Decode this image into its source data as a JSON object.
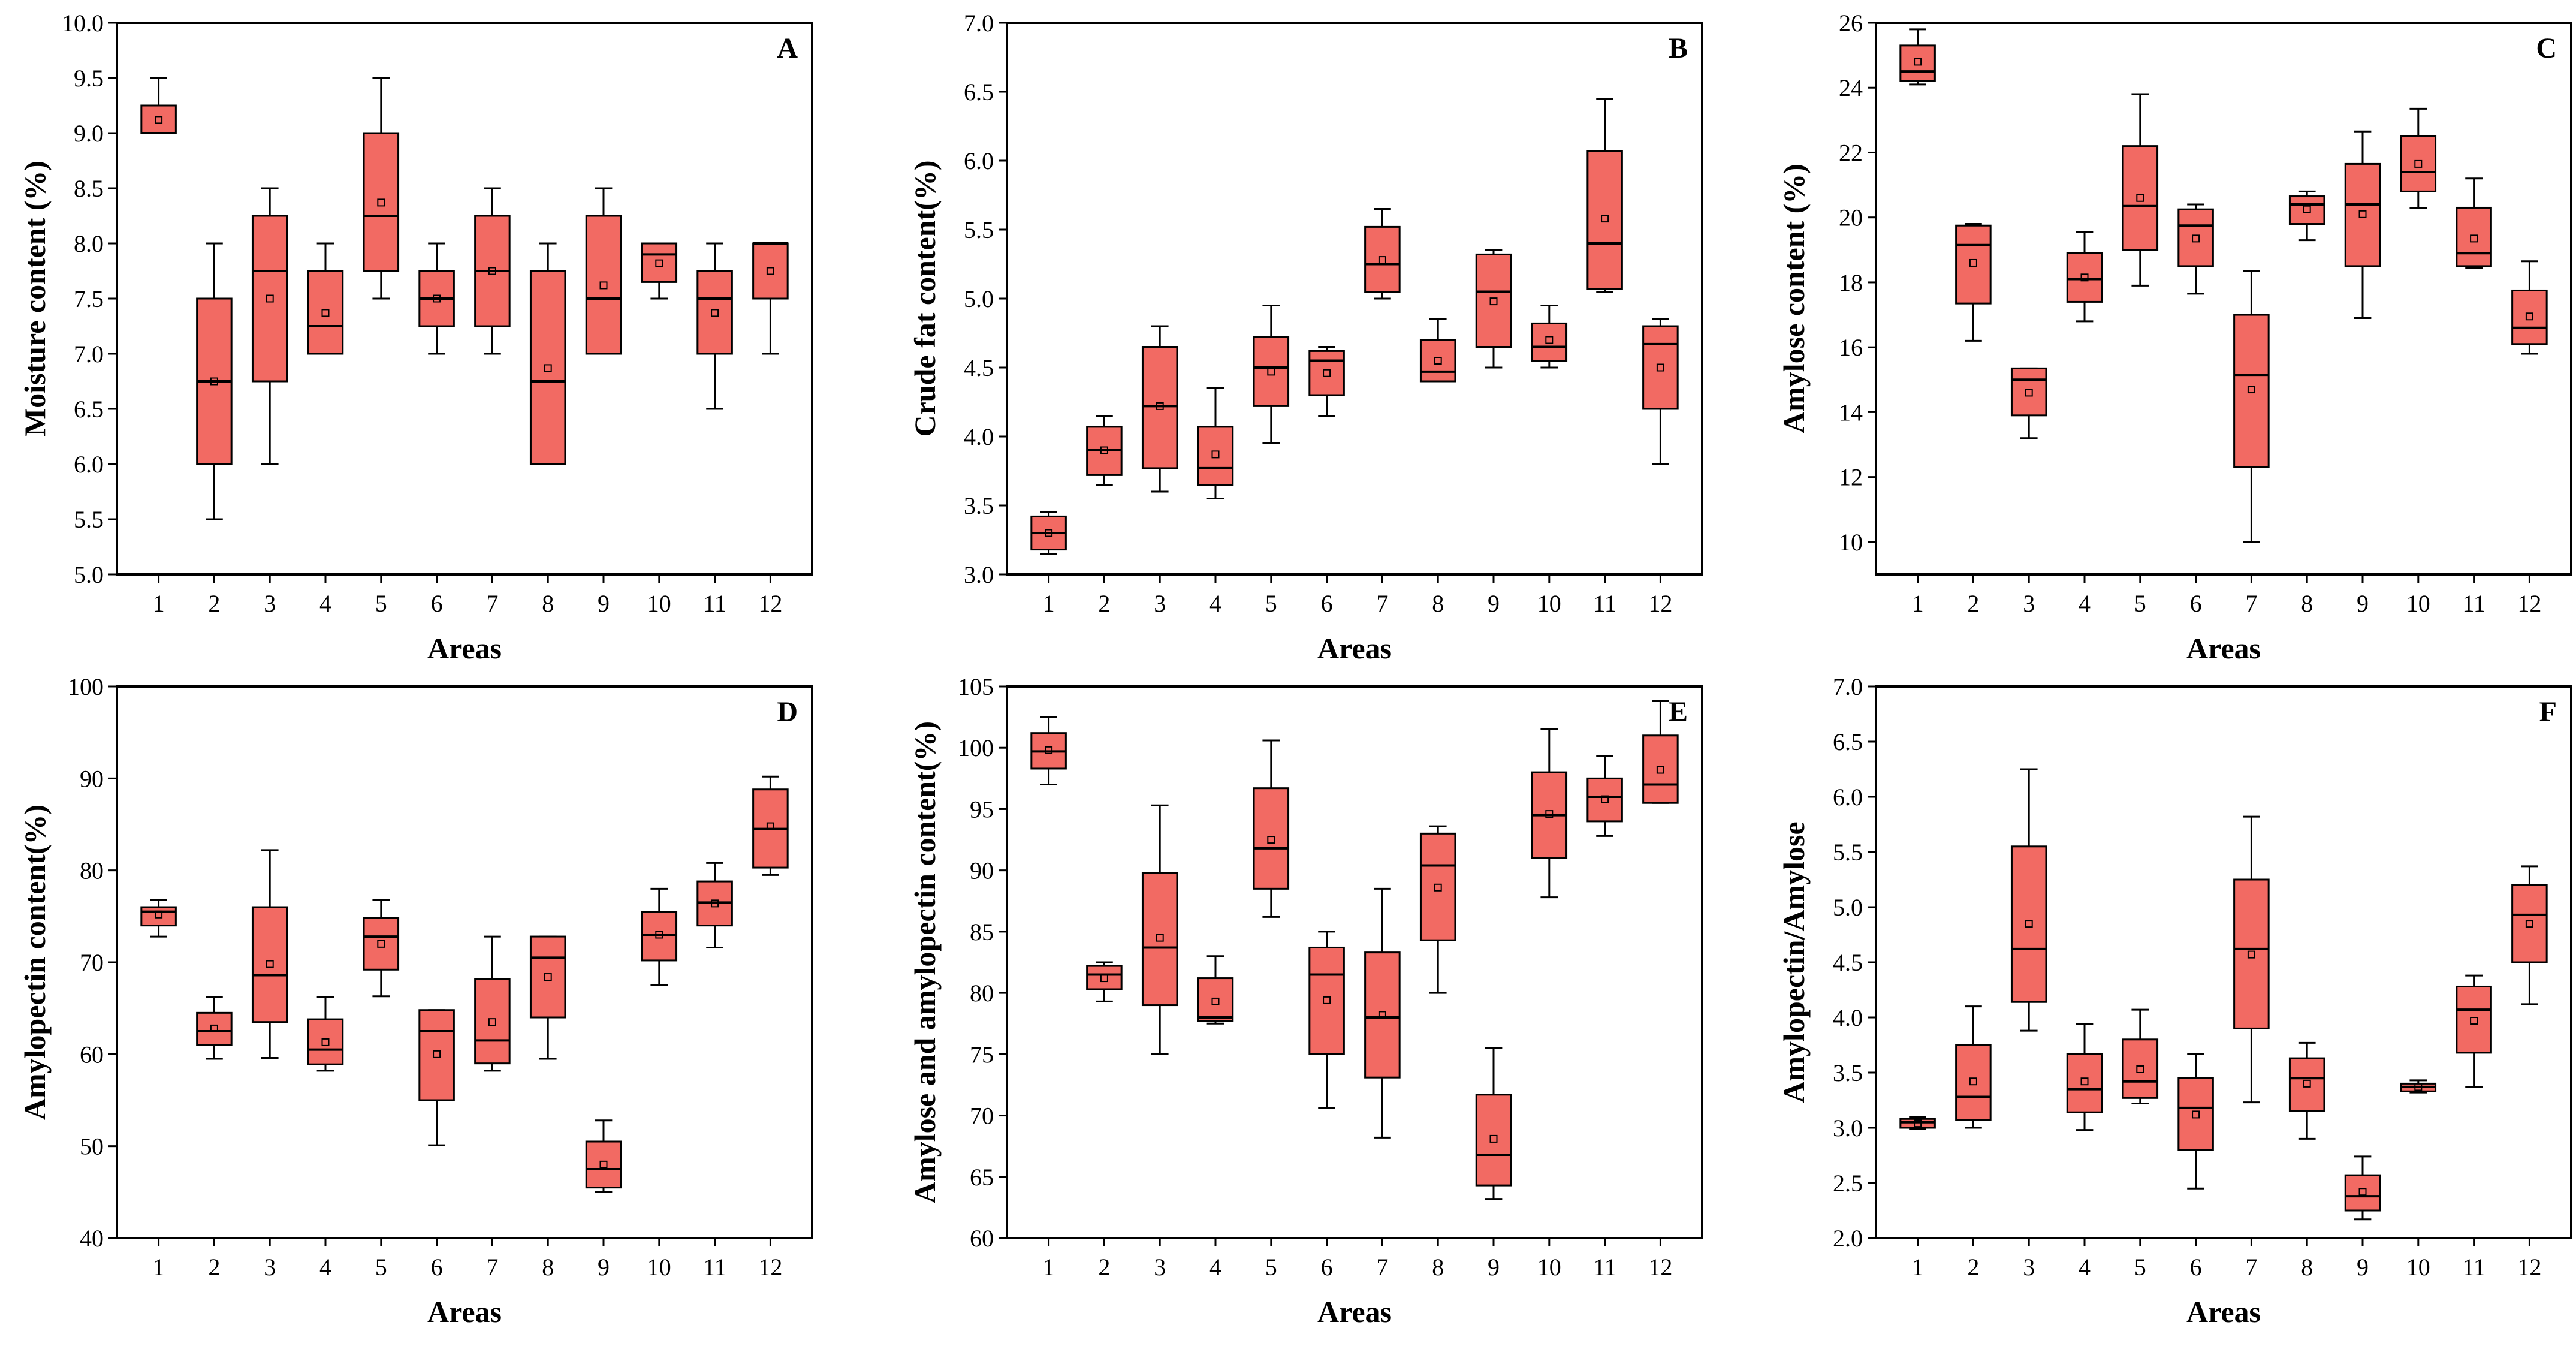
{
  "figure": {
    "box_color": "#f26a63",
    "edge_color": "#000000"
  },
  "chart_data": [
    {
      "id": "A",
      "type": "box",
      "letter": "A",
      "xlabel": "Areas",
      "ylabel": "Moisture content (%)",
      "ylim": [
        5.0,
        10.0
      ],
      "yticks": [
        "5.0",
        "5.5",
        "6.0",
        "6.5",
        "7.0",
        "7.5",
        "8.0",
        "8.5",
        "9.0",
        "9.5",
        "10.0"
      ],
      "categories": [
        "1",
        "2",
        "3",
        "4",
        "5",
        "6",
        "7",
        "8",
        "9",
        "10",
        "11",
        "12"
      ],
      "boxes": [
        {
          "min": 9.0,
          "q1": 9.0,
          "median": 9.0,
          "q3": 9.25,
          "max": 9.5,
          "mean": 9.12
        },
        {
          "min": 5.5,
          "q1": 6.0,
          "median": 6.75,
          "q3": 7.5,
          "max": 8.0,
          "mean": 6.75
        },
        {
          "min": 6.0,
          "q1": 6.75,
          "median": 7.75,
          "q3": 8.25,
          "max": 8.5,
          "mean": 7.5
        },
        {
          "min": 7.0,
          "q1": 7.0,
          "median": 7.25,
          "q3": 7.75,
          "max": 8.0,
          "mean": 7.37
        },
        {
          "min": 7.5,
          "q1": 7.75,
          "median": 8.25,
          "q3": 9.0,
          "max": 9.5,
          "mean": 8.37
        },
        {
          "min": 7.0,
          "q1": 7.25,
          "median": 7.5,
          "q3": 7.75,
          "max": 8.0,
          "mean": 7.5
        },
        {
          "min": 7.0,
          "q1": 7.25,
          "median": 7.75,
          "q3": 8.25,
          "max": 8.5,
          "mean": 7.75
        },
        {
          "min": 6.0,
          "q1": 6.0,
          "median": 6.75,
          "q3": 7.75,
          "max": 8.0,
          "mean": 6.87
        },
        {
          "min": 7.0,
          "q1": 7.0,
          "median": 7.5,
          "q3": 8.25,
          "max": 8.5,
          "mean": 7.62
        },
        {
          "min": 7.5,
          "q1": 7.65,
          "median": 7.9,
          "q3": 8.0,
          "max": 8.0,
          "mean": 7.82
        },
        {
          "min": 6.5,
          "q1": 7.0,
          "median": 7.5,
          "q3": 7.75,
          "max": 8.0,
          "mean": 7.37
        },
        {
          "min": 7.0,
          "q1": 7.5,
          "median": 8.0,
          "q3": 8.0,
          "max": 8.0,
          "mean": 7.75
        }
      ]
    },
    {
      "id": "B",
      "type": "box",
      "letter": "B",
      "xlabel": "Areas",
      "ylabel": "Crude fat content(%)",
      "ylim": [
        3.0,
        7.0
      ],
      "yticks": [
        "3.0",
        "3.5",
        "4.0",
        "4.5",
        "5.0",
        "5.5",
        "6.0",
        "6.5",
        "7.0"
      ],
      "categories": [
        "1",
        "2",
        "3",
        "4",
        "5",
        "6",
        "7",
        "8",
        "9",
        "10",
        "11",
        "12"
      ],
      "boxes": [
        {
          "min": 3.15,
          "q1": 3.18,
          "median": 3.3,
          "q3": 3.42,
          "max": 3.45,
          "mean": 3.3
        },
        {
          "min": 3.65,
          "q1": 3.72,
          "median": 3.9,
          "q3": 4.07,
          "max": 4.15,
          "mean": 3.9
        },
        {
          "min": 3.6,
          "q1": 3.77,
          "median": 4.22,
          "q3": 4.65,
          "max": 4.8,
          "mean": 4.22
        },
        {
          "min": 3.55,
          "q1": 3.65,
          "median": 3.77,
          "q3": 4.07,
          "max": 4.35,
          "mean": 3.87
        },
        {
          "min": 3.95,
          "q1": 4.22,
          "median": 4.5,
          "q3": 4.72,
          "max": 4.95,
          "mean": 4.47
        },
        {
          "min": 4.15,
          "q1": 4.3,
          "median": 4.55,
          "q3": 4.62,
          "max": 4.65,
          "mean": 4.46
        },
        {
          "min": 5.0,
          "q1": 5.05,
          "median": 5.25,
          "q3": 5.52,
          "max": 5.65,
          "mean": 5.28
        },
        {
          "min": 4.4,
          "q1": 4.4,
          "median": 4.47,
          "q3": 4.7,
          "max": 4.85,
          "mean": 4.55
        },
        {
          "min": 4.5,
          "q1": 4.65,
          "median": 5.05,
          "q3": 5.32,
          "max": 5.35,
          "mean": 4.98
        },
        {
          "min": 4.5,
          "q1": 4.55,
          "median": 4.65,
          "q3": 4.82,
          "max": 4.95,
          "mean": 4.7
        },
        {
          "min": 5.05,
          "q1": 5.07,
          "median": 5.4,
          "q3": 6.07,
          "max": 6.45,
          "mean": 5.58
        },
        {
          "min": 3.8,
          "q1": 4.2,
          "median": 4.67,
          "q3": 4.8,
          "max": 4.85,
          "mean": 4.5
        }
      ]
    },
    {
      "id": "C",
      "type": "box",
      "letter": "C",
      "xlabel": "Areas",
      "ylabel": "Amylose content (%)",
      "ylim": [
        9,
        26
      ],
      "yticks": [
        "10",
        "12",
        "14",
        "16",
        "18",
        "20",
        "22",
        "24",
        "26"
      ],
      "categories": [
        "1",
        "2",
        "3",
        "4",
        "5",
        "6",
        "7",
        "8",
        "9",
        "10",
        "11",
        "12"
      ],
      "boxes": [
        {
          "min": 24.1,
          "q1": 24.2,
          "median": 24.5,
          "q3": 25.3,
          "max": 25.8,
          "mean": 24.8
        },
        {
          "min": 16.2,
          "q1": 17.35,
          "median": 19.15,
          "q3": 19.75,
          "max": 19.8,
          "mean": 18.6
        },
        {
          "min": 13.2,
          "q1": 13.9,
          "median": 15.0,
          "q3": 15.35,
          "max": 15.35,
          "mean": 14.6
        },
        {
          "min": 16.8,
          "q1": 17.4,
          "median": 18.1,
          "q3": 18.9,
          "max": 19.55,
          "mean": 18.15
        },
        {
          "min": 17.9,
          "q1": 19.0,
          "median": 20.35,
          "q3": 22.2,
          "max": 23.8,
          "mean": 20.6
        },
        {
          "min": 17.65,
          "q1": 18.5,
          "median": 19.75,
          "q3": 20.25,
          "max": 20.4,
          "mean": 19.35
        },
        {
          "min": 10.0,
          "q1": 12.3,
          "median": 15.15,
          "q3": 17.0,
          "max": 18.35,
          "mean": 14.7
        },
        {
          "min": 19.3,
          "q1": 19.8,
          "median": 20.4,
          "q3": 20.65,
          "max": 20.8,
          "mean": 20.25
        },
        {
          "min": 16.9,
          "q1": 18.5,
          "median": 20.4,
          "q3": 21.65,
          "max": 22.65,
          "mean": 20.1
        },
        {
          "min": 20.3,
          "q1": 20.8,
          "median": 21.4,
          "q3": 22.5,
          "max": 23.35,
          "mean": 21.65
        },
        {
          "min": 18.45,
          "q1": 18.5,
          "median": 18.9,
          "q3": 20.3,
          "max": 21.2,
          "mean": 19.35
        },
        {
          "min": 15.8,
          "q1": 16.1,
          "median": 16.6,
          "q3": 17.75,
          "max": 18.65,
          "mean": 16.95
        }
      ]
    },
    {
      "id": "D",
      "type": "box",
      "letter": "D",
      "xlabel": "Areas",
      "ylabel": "Amylopectin content(%)",
      "ylim": [
        40,
        100
      ],
      "yticks": [
        "40",
        "50",
        "60",
        "70",
        "80",
        "90",
        "100"
      ],
      "categories": [
        "1",
        "2",
        "3",
        "4",
        "5",
        "6",
        "7",
        "8",
        "9",
        "10",
        "11",
        "12"
      ],
      "boxes": [
        {
          "min": 72.8,
          "q1": 74.0,
          "median": 75.5,
          "q3": 76.0,
          "max": 76.8,
          "mean": 75.2
        },
        {
          "min": 59.5,
          "q1": 61.0,
          "median": 62.5,
          "q3": 64.5,
          "max": 66.2,
          "mean": 62.8
        },
        {
          "min": 59.6,
          "q1": 63.5,
          "median": 68.6,
          "q3": 76.0,
          "max": 82.2,
          "mean": 69.8
        },
        {
          "min": 58.2,
          "q1": 58.9,
          "median": 60.5,
          "q3": 63.8,
          "max": 66.2,
          "mean": 61.3
        },
        {
          "min": 66.3,
          "q1": 69.2,
          "median": 72.8,
          "q3": 74.8,
          "max": 76.8,
          "mean": 72.0
        },
        {
          "min": 50.1,
          "q1": 55.0,
          "median": 62.5,
          "q3": 64.8,
          "max": 64.8,
          "mean": 60.0
        },
        {
          "min": 58.2,
          "q1": 59.0,
          "median": 61.5,
          "q3": 68.2,
          "max": 72.8,
          "mean": 63.5
        },
        {
          "min": 59.5,
          "q1": 64.0,
          "median": 70.5,
          "q3": 72.8,
          "max": 72.8,
          "mean": 68.4
        },
        {
          "min": 45.0,
          "q1": 45.5,
          "median": 47.5,
          "q3": 50.5,
          "max": 52.8,
          "mean": 48.0
        },
        {
          "min": 67.5,
          "q1": 70.2,
          "median": 73.0,
          "q3": 75.5,
          "max": 78.0,
          "mean": 73.0
        },
        {
          "min": 71.6,
          "q1": 74.0,
          "median": 76.5,
          "q3": 78.8,
          "max": 80.8,
          "mean": 76.4
        },
        {
          "min": 79.5,
          "q1": 80.3,
          "median": 84.5,
          "q3": 88.8,
          "max": 90.2,
          "mean": 84.8
        }
      ]
    },
    {
      "id": "E",
      "type": "box",
      "letter": "E",
      "xlabel": "Areas",
      "ylabel": "Amylose and amylopectin content(%)",
      "ylim": [
        60,
        105
      ],
      "yticks": [
        "60",
        "65",
        "70",
        "75",
        "80",
        "85",
        "90",
        "95",
        "100",
        "105"
      ],
      "categories": [
        "1",
        "2",
        "3",
        "4",
        "5",
        "6",
        "7",
        "8",
        "9",
        "10",
        "11",
        "12"
      ],
      "boxes": [
        {
          "min": 97.0,
          "q1": 98.3,
          "median": 99.7,
          "q3": 101.2,
          "max": 102.5,
          "mean": 99.8
        },
        {
          "min": 79.3,
          "q1": 80.3,
          "median": 81.5,
          "q3": 82.2,
          "max": 82.5,
          "mean": 81.2
        },
        {
          "min": 75.0,
          "q1": 79.0,
          "median": 83.7,
          "q3": 89.8,
          "max": 95.3,
          "mean": 84.5
        },
        {
          "min": 77.5,
          "q1": 77.7,
          "median": 78.0,
          "q3": 81.2,
          "max": 83.0,
          "mean": 79.3
        },
        {
          "min": 86.2,
          "q1": 88.5,
          "median": 91.8,
          "q3": 96.7,
          "max": 100.6,
          "mean": 92.5
        },
        {
          "min": 70.6,
          "q1": 75.0,
          "median": 81.5,
          "q3": 83.7,
          "max": 85.0,
          "mean": 79.4
        },
        {
          "min": 68.2,
          "q1": 73.1,
          "median": 78.0,
          "q3": 83.3,
          "max": 88.5,
          "mean": 78.2
        },
        {
          "min": 80.0,
          "q1": 84.3,
          "median": 90.4,
          "q3": 93.0,
          "max": 93.6,
          "mean": 88.6
        },
        {
          "min": 63.2,
          "q1": 64.3,
          "median": 66.8,
          "q3": 71.7,
          "max": 75.5,
          "mean": 68.1
        },
        {
          "min": 87.8,
          "q1": 91.0,
          "median": 94.5,
          "q3": 98.0,
          "max": 101.5,
          "mean": 94.6
        },
        {
          "min": 92.8,
          "q1": 94.0,
          "median": 96.0,
          "q3": 97.5,
          "max": 99.3,
          "mean": 95.8
        },
        {
          "min": 95.5,
          "q1": 95.5,
          "median": 97.0,
          "q3": 101.0,
          "max": 103.8,
          "mean": 98.2
        }
      ]
    },
    {
      "id": "F",
      "type": "box",
      "letter": "F",
      "xlabel": "Areas",
      "ylabel": "Amylopectin/Amylose",
      "ylim": [
        2.0,
        7.0
      ],
      "yticks": [
        "2.0",
        "2.5",
        "3.0",
        "3.5",
        "4.0",
        "4.5",
        "5.0",
        "5.5",
        "6.0",
        "6.5",
        "7.0"
      ],
      "categories": [
        "1",
        "2",
        "3",
        "4",
        "5",
        "6",
        "7",
        "8",
        "9",
        "10",
        "11",
        "12"
      ],
      "boxes": [
        {
          "min": 2.99,
          "q1": 3.0,
          "median": 3.05,
          "q3": 3.08,
          "max": 3.1,
          "mean": 3.04
        },
        {
          "min": 3.0,
          "q1": 3.07,
          "median": 3.28,
          "q3": 3.75,
          "max": 4.1,
          "mean": 3.42
        },
        {
          "min": 3.88,
          "q1": 4.14,
          "median": 4.62,
          "q3": 5.55,
          "max": 6.25,
          "mean": 4.85
        },
        {
          "min": 2.98,
          "q1": 3.14,
          "median": 3.35,
          "q3": 3.67,
          "max": 3.94,
          "mean": 3.42
        },
        {
          "min": 3.22,
          "q1": 3.27,
          "median": 3.42,
          "q3": 3.8,
          "max": 4.07,
          "mean": 3.53
        },
        {
          "min": 2.45,
          "q1": 2.8,
          "median": 3.18,
          "q3": 3.45,
          "max": 3.67,
          "mean": 3.12
        },
        {
          "min": 3.23,
          "q1": 3.9,
          "median": 4.62,
          "q3": 5.25,
          "max": 5.82,
          "mean": 4.57
        },
        {
          "min": 2.9,
          "q1": 3.15,
          "median": 3.45,
          "q3": 3.63,
          "max": 3.77,
          "mean": 3.4
        },
        {
          "min": 2.17,
          "q1": 2.25,
          "median": 2.38,
          "q3": 2.57,
          "max": 2.74,
          "mean": 2.42
        },
        {
          "min": 3.32,
          "q1": 3.33,
          "median": 3.37,
          "q3": 3.4,
          "max": 3.43,
          "mean": 3.37
        },
        {
          "min": 3.37,
          "q1": 3.68,
          "median": 4.07,
          "q3": 4.28,
          "max": 4.38,
          "mean": 3.97
        },
        {
          "min": 4.12,
          "q1": 4.5,
          "median": 4.93,
          "q3": 5.2,
          "max": 5.37,
          "mean": 4.85
        }
      ]
    }
  ]
}
